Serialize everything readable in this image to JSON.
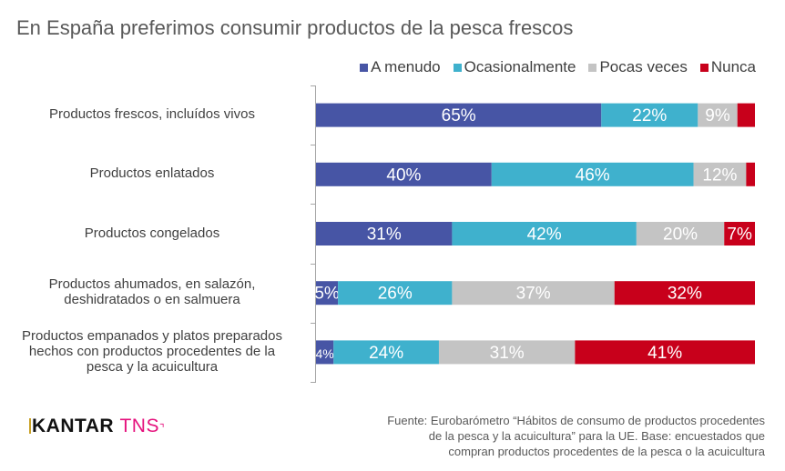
{
  "chart_data": {
    "type": "bar",
    "orientation": "horizontal",
    "stacked": true,
    "title": "En España preferimos consumir productos de la pesca frescos",
    "categories": [
      [
        "Productos frescos, incluídos vivos"
      ],
      [
        "Productos enlatados"
      ],
      [
        "Productos congelados"
      ],
      [
        "Productos ahumados, en salazón,",
        "deshidratados o en salmuera"
      ],
      [
        "Productos empanados y platos preparados",
        "hechos con productos procedentes de la",
        "pesca y la acuicultura"
      ]
    ],
    "series": [
      {
        "name": "A menudo",
        "color": "#4755a5",
        "values": [
          65,
          40,
          31,
          5,
          4
        ],
        "labels": [
          "65%",
          "40%",
          "31%",
          "5%",
          "4%"
        ]
      },
      {
        "name": "Ocasionalmente",
        "color": "#3fb1cd",
        "values": [
          22,
          46,
          42,
          26,
          24
        ],
        "labels": [
          "22%",
          "46%",
          "42%",
          "26%",
          "24%"
        ]
      },
      {
        "name": "Pocas veces",
        "color": "#c4c4c4",
        "values": [
          9,
          12,
          20,
          37,
          31
        ],
        "labels": [
          "9%",
          "12%",
          "20%",
          "37%",
          "31%"
        ]
      },
      {
        "name": "Nunca",
        "color": "#c8001b",
        "values": [
          4,
          2,
          7,
          32,
          41
        ],
        "labels": [
          "",
          "",
          "7%",
          "32%",
          "41%"
        ]
      }
    ],
    "xlim": [
      0,
      100
    ],
    "legend": "top-right",
    "grid": false
  },
  "source": {
    "lines": [
      "Fuente: Eurobarómetro “Hábitos de consumo de productos procedentes",
      "de la pesca y la acuicultura” para la UE. Base: encuestados que",
      "compran productos procedentes de la pesca o la acuicultura"
    ]
  },
  "logo": {
    "part1": "KANTAR",
    "part2": "TNS"
  }
}
